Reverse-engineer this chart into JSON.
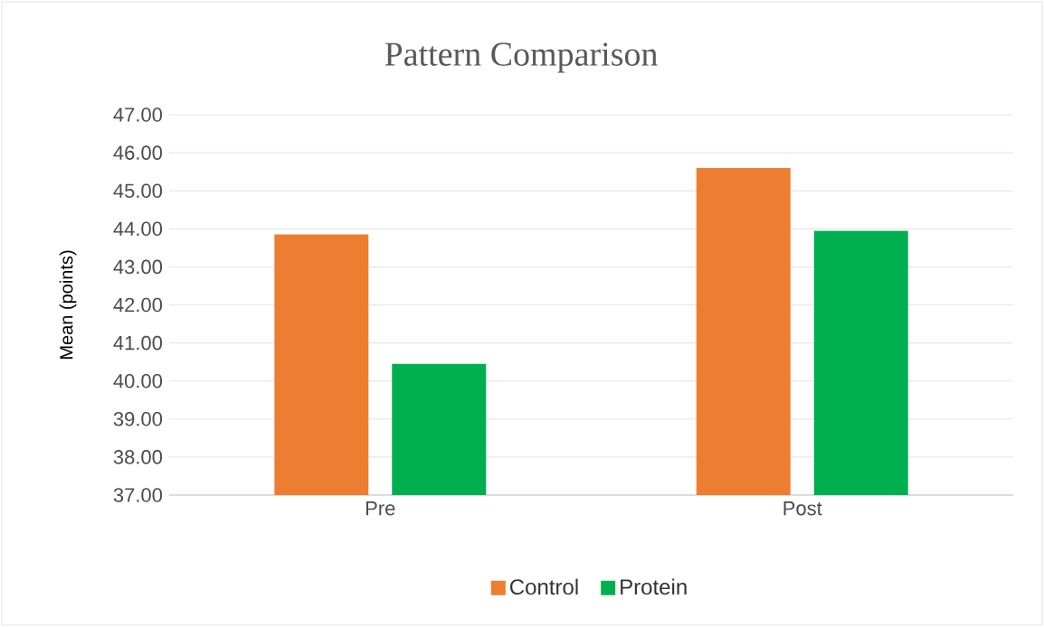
{
  "chart_data": {
    "type": "bar",
    "title": "Pattern Comparison",
    "ylabel": "Mean (points)",
    "categories": [
      "Pre",
      "Post"
    ],
    "series": [
      {
        "name": "Control",
        "color": "#ed7d31",
        "values": [
          43.85,
          45.6
        ]
      },
      {
        "name": "Protein",
        "color": "#00b050",
        "values": [
          40.45,
          43.95
        ]
      }
    ],
    "ylim": [
      37,
      47
    ],
    "yticks": [
      {
        "value": 37,
        "label": "37.00"
      },
      {
        "value": 38,
        "label": "38.00"
      },
      {
        "value": 39,
        "label": "39.00"
      },
      {
        "value": 40,
        "label": "40.00"
      },
      {
        "value": 41,
        "label": "41.00"
      },
      {
        "value": 42,
        "label": "42.00"
      },
      {
        "value": 43,
        "label": "43.00"
      },
      {
        "value": 44,
        "label": "44.00"
      },
      {
        "value": 45,
        "label": "45.00"
      },
      {
        "value": 46,
        "label": "46.00"
      },
      {
        "value": 47,
        "label": "47.00"
      }
    ],
    "grid": "y",
    "legend": "bottom"
  }
}
